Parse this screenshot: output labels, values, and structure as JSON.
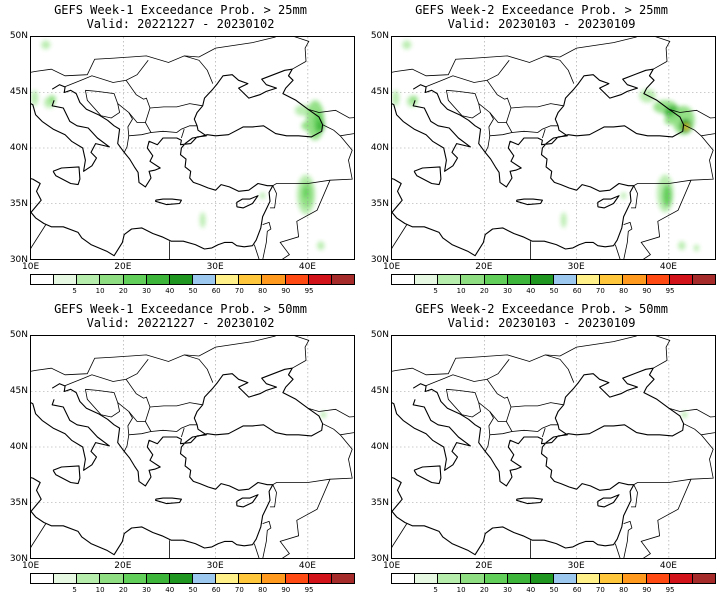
{
  "panels": [
    {
      "title": "GEFS Week-1 Exceedance Prob. > 25mm",
      "valid": "Valid: 20221227 - 20230102",
      "intensity": "low"
    },
    {
      "title": "GEFS Week-2 Exceedance Prob. > 25mm",
      "valid": "Valid: 20230103 - 20230109",
      "intensity": "high"
    },
    {
      "title": "GEFS Week-1 Exceedance Prob. > 50mm",
      "valid": "Valid: 20221227 - 20230102",
      "intensity": "none"
    },
    {
      "title": "GEFS Week-2 Exceedance Prob. > 50mm",
      "valid": "Valid: 20230103 - 20230109",
      "intensity": "none"
    }
  ],
  "lat_labels": [
    "50N",
    "45N",
    "40N",
    "35N",
    "30N"
  ],
  "lon_labels": [
    "10E",
    "20E",
    "30E",
    "40E"
  ],
  "colorbar": {
    "labels": [
      "5",
      "10",
      "20",
      "30",
      "40",
      "50",
      "60",
      "70",
      "80",
      "90",
      "95"
    ],
    "colors": [
      "#ffffff",
      "#e6f8e2",
      "#b6ecac",
      "#8fdf82",
      "#62cf5a",
      "#3db43a",
      "#1e961f",
      "#9cc8f0",
      "#fff08a",
      "#ffc83c",
      "#ff9a1e",
      "#ff4a14",
      "#d2141a",
      "#a52a2a"
    ]
  },
  "colors": {
    "coast": "#000000",
    "grid": "#999999"
  }
}
